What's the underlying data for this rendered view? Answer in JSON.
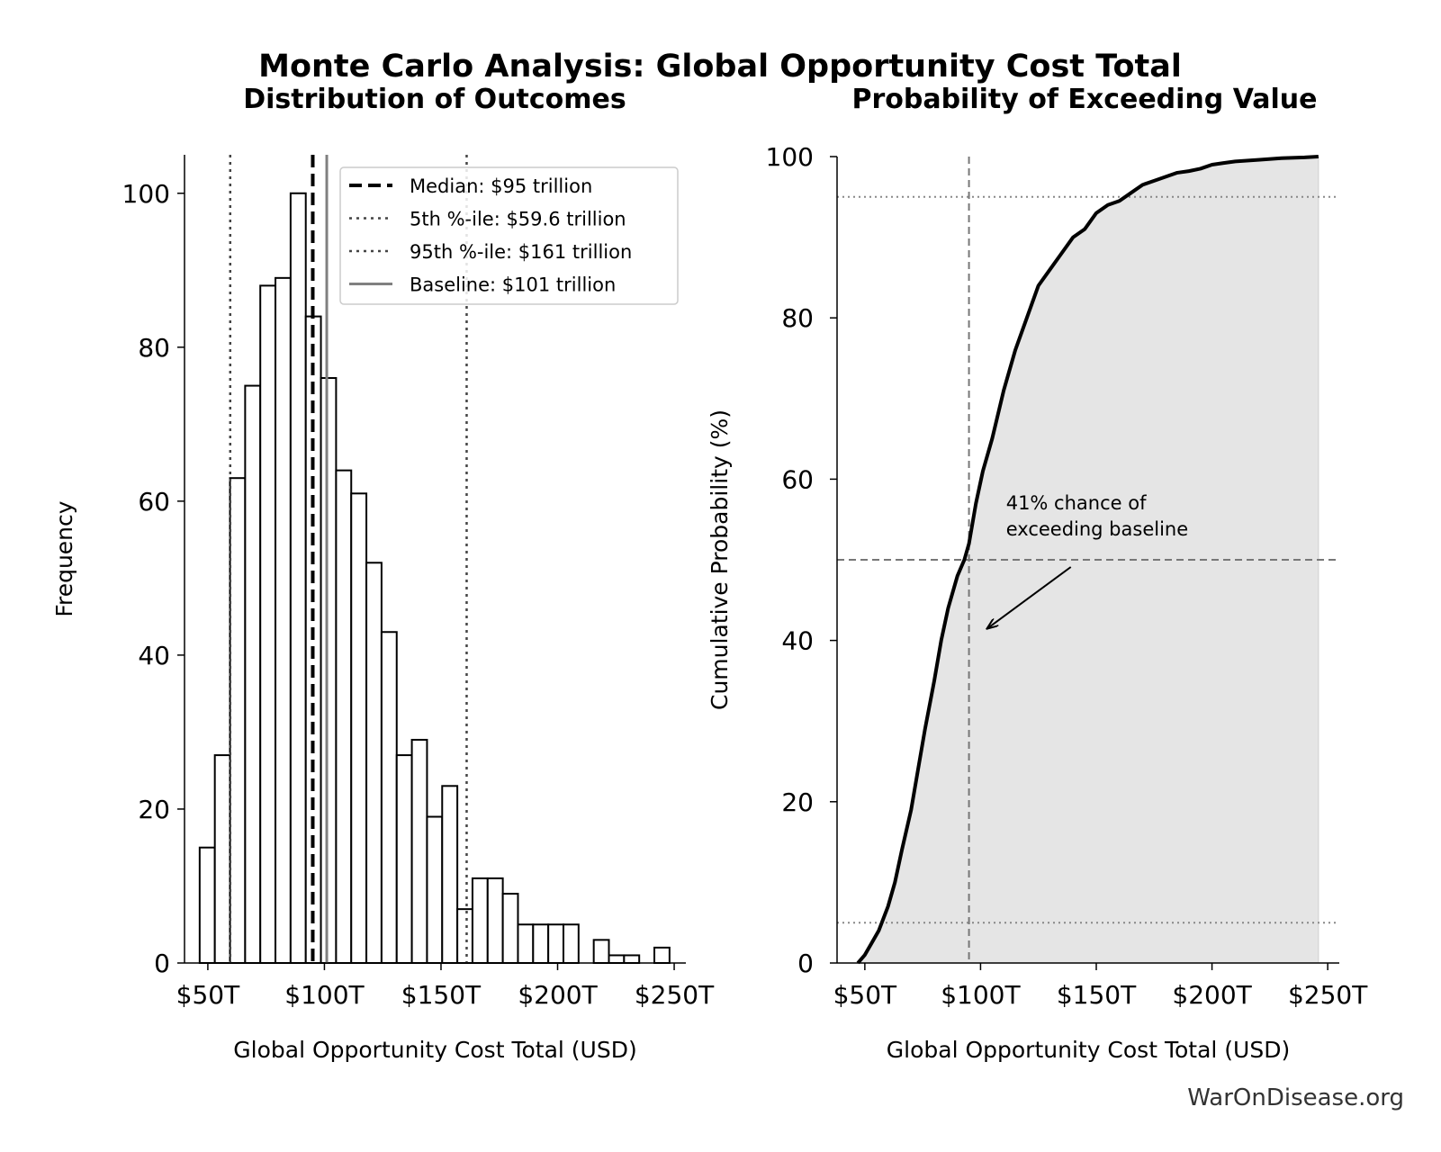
{
  "page": {
    "title": "Monte Carlo Analysis: Global Opportunity Cost Total",
    "watermark": "WarOnDisease.org"
  },
  "chart_data": [
    {
      "type": "bar",
      "title": "Distribution of Outcomes",
      "xlabel": "Global Opportunity Cost Total (USD)",
      "ylabel": "Frequency",
      "xlim": [
        40,
        255
      ],
      "ylim": [
        0,
        105
      ],
      "x_ticks": [
        50,
        100,
        150,
        200,
        250
      ],
      "x_tick_labels": [
        "$50T",
        "$100T",
        "$150T",
        "$200T",
        "$250T"
      ],
      "y_ticks": [
        0,
        20,
        40,
        60,
        80,
        100
      ],
      "y_tick_labels": [
        "0",
        "20",
        "40",
        "60",
        "80",
        "100"
      ],
      "bin_start": 46.5,
      "bin_width": 6.5,
      "counts": [
        15,
        27,
        63,
        75,
        88,
        89,
        100,
        84,
        76,
        64,
        61,
        52,
        43,
        27,
        29,
        19,
        23,
        7,
        11,
        11,
        9,
        5,
        5,
        5,
        5,
        0,
        3,
        1,
        1,
        0,
        2
      ],
      "reference_lines": [
        {
          "label": "Median: $95 trillion",
          "value": 95,
          "style": "dashed",
          "color": "#000000"
        },
        {
          "label": "5th %-ile: $59.6 trillion",
          "value": 59.6,
          "style": "dotted",
          "color": "#444444"
        },
        {
          "label": "95th %-ile: $161 trillion",
          "value": 161,
          "style": "dotted",
          "color": "#444444"
        },
        {
          "label": "Baseline: $101 trillion",
          "value": 101,
          "style": "solid",
          "color": "#808080"
        }
      ],
      "legend_position": "top-right",
      "grid": false
    },
    {
      "type": "area",
      "title": "Probability of Exceeding Value",
      "xlabel": "Global Opportunity Cost Total (USD)",
      "ylabel": "Cumulative Probability (%)",
      "xlim": [
        38,
        255
      ],
      "ylim": [
        0,
        100
      ],
      "x_ticks": [
        50,
        100,
        150,
        200,
        250
      ],
      "x_tick_labels": [
        "$50T",
        "$100T",
        "$150T",
        "$200T",
        "$250T"
      ],
      "y_ticks": [
        0,
        20,
        40,
        60,
        80,
        100
      ],
      "y_tick_labels": [
        "0",
        "20",
        "40",
        "60",
        "80",
        "100"
      ],
      "x": [
        47,
        50,
        53,
        56,
        60,
        63,
        66,
        70,
        73,
        76,
        80,
        83,
        86,
        90,
        93,
        95,
        98,
        101,
        105,
        110,
        115,
        120,
        125,
        130,
        135,
        140,
        145,
        150,
        155,
        160,
        165,
        170,
        175,
        180,
        185,
        190,
        195,
        200,
        205,
        210,
        220,
        230,
        240,
        246
      ],
      "y": [
        0,
        1,
        2.5,
        4,
        7,
        10,
        14,
        19,
        24,
        29,
        35,
        40,
        44,
        48,
        50,
        52,
        57,
        61,
        65,
        71,
        76,
        80,
        84,
        86,
        88,
        90,
        91,
        93,
        94,
        94.5,
        95.5,
        96.5,
        97,
        97.5,
        98,
        98.2,
        98.5,
        99,
        99.2,
        99.4,
        99.6,
        99.8,
        99.9,
        100
      ],
      "reference_lines": [
        {
          "orientation": "vertical",
          "value": 95,
          "style": "dashed",
          "color": "#777777"
        },
        {
          "orientation": "horizontal",
          "value": 50,
          "style": "dashed",
          "color": "#777777"
        },
        {
          "orientation": "horizontal",
          "value": 5,
          "style": "dotted",
          "color": "#888888"
        },
        {
          "orientation": "horizontal",
          "value": 95,
          "style": "dotted",
          "color": "#888888"
        }
      ],
      "annotation": {
        "lines": [
          "41% chance of",
          "exceeding baseline"
        ],
        "text_at": [
          111,
          56
        ],
        "arrow_from": [
          139,
          50
        ],
        "arrow_to": [
          103,
          41.5
        ]
      },
      "fill_color": "#e5e5e5",
      "grid": false
    }
  ]
}
